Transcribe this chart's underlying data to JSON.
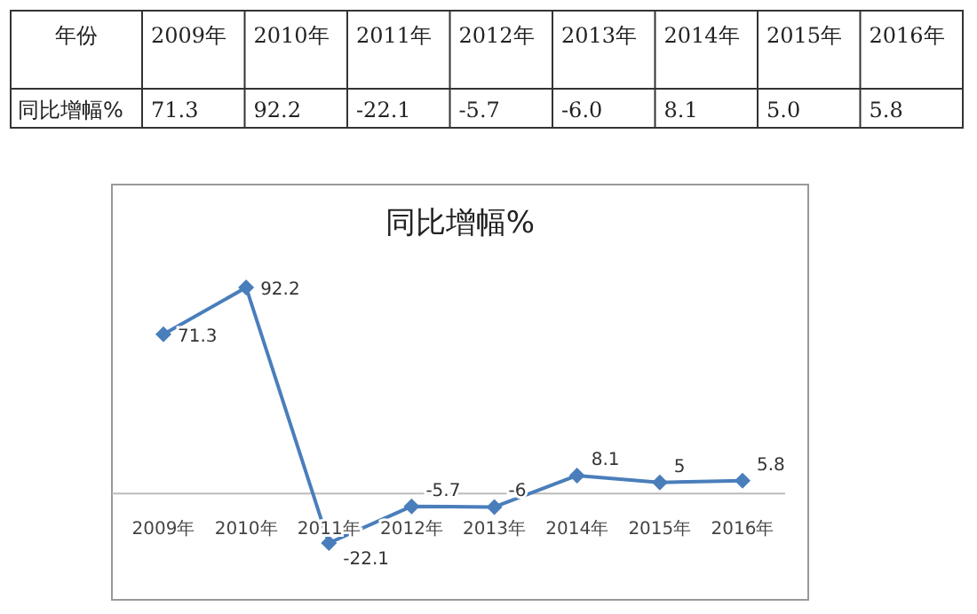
{
  "chart_data": {
    "type": "line",
    "title": "同比增幅%",
    "categories": [
      "2009年",
      "2010年",
      "2011年",
      "2012年",
      "2013年",
      "2014年",
      "2015年",
      "2016年"
    ],
    "series": [
      {
        "color": "#4a7ebb",
        "values": [
          71.3,
          92.2,
          -22.1,
          -5.7,
          -6.0,
          8.1,
          5.0,
          5.8
        ],
        "value_labels": [
          "71.3",
          "92.2",
          "-22.1",
          "-5.7",
          "-6",
          "8.1",
          "5",
          "5.8"
        ]
      }
    ],
    "data_labels": true,
    "marker": "diamond",
    "annotations": [
      "年份",
      "同比增幅%",
      "71.3",
      "92.2",
      "-22.1",
      "-5.7",
      "-6.0",
      "8.1",
      "5.0",
      "5.8"
    ]
  }
}
